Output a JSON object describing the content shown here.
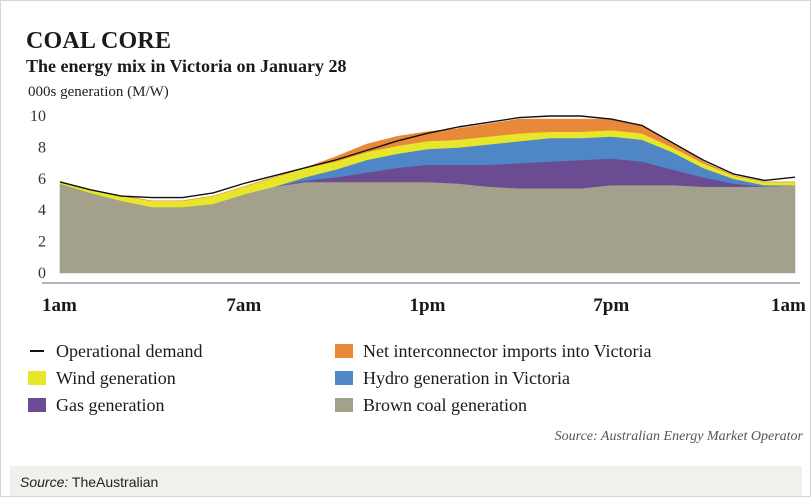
{
  "chart_data": {
    "type": "area",
    "stacked": true,
    "title": "COAL CORE",
    "subtitle": "The energy mix in Victoria on January 28",
    "ylabel": "000s generation (M/W)",
    "ylim": [
      0,
      10
    ],
    "yticks": [
      "10",
      "8",
      "6",
      "4",
      "2",
      "0"
    ],
    "xtick_labels": [
      "1am",
      "7am",
      "1pm",
      "7pm",
      "1am"
    ],
    "xtick_hours": [
      1,
      7,
      13,
      19,
      25
    ],
    "xlim": [
      1,
      25
    ],
    "grid": false,
    "x": [
      1,
      2,
      3,
      4,
      5,
      6,
      7,
      8,
      9,
      10,
      11,
      12,
      13,
      14,
      15,
      16,
      17,
      18,
      19,
      20,
      21,
      22,
      23,
      24,
      25
    ],
    "series": [
      {
        "name": "Brown coal generation",
        "color": "#a3a08b",
        "values": [
          5.7,
          5.1,
          4.6,
          4.2,
          4.2,
          4.4,
          5.0,
          5.5,
          5.8,
          5.8,
          5.8,
          5.8,
          5.8,
          5.7,
          5.5,
          5.4,
          5.4,
          5.4,
          5.6,
          5.6,
          5.6,
          5.5,
          5.5,
          5.5,
          5.6
        ]
      },
      {
        "name": "Gas generation",
        "color": "#6b4c93",
        "values": [
          0,
          0,
          0,
          0,
          0,
          0,
          0,
          0,
          0.1,
          0.3,
          0.6,
          0.9,
          1.1,
          1.2,
          1.4,
          1.6,
          1.7,
          1.8,
          1.7,
          1.5,
          1.0,
          0.6,
          0.2,
          0,
          0
        ]
      },
      {
        "name": "Hydro generation in Victoria",
        "color": "#4f86c6",
        "values": [
          0,
          0,
          0,
          0,
          0,
          0,
          0,
          0,
          0.2,
          0.5,
          0.8,
          0.9,
          1.0,
          1.1,
          1.3,
          1.4,
          1.5,
          1.4,
          1.4,
          1.4,
          1.1,
          0.6,
          0.3,
          0.1,
          0
        ]
      },
      {
        "name": "Wind generation",
        "color": "#e8e62a",
        "values": [
          0.1,
          0.2,
          0.3,
          0.4,
          0.4,
          0.5,
          0.5,
          0.6,
          0.6,
          0.5,
          0.5,
          0.5,
          0.5,
          0.5,
          0.5,
          0.5,
          0.4,
          0.4,
          0.4,
          0.4,
          0.3,
          0.3,
          0.2,
          0.2,
          0.2
        ]
      },
      {
        "name": "Net interconnector imports into Victoria",
        "color": "#e8893a",
        "values": [
          0,
          0,
          0,
          0,
          0,
          0,
          0,
          0,
          0,
          0.3,
          0.5,
          0.6,
          0.6,
          0.7,
          0.8,
          0.9,
          0.8,
          0.8,
          0.7,
          0.5,
          0.3,
          0.1,
          0,
          0,
          0
        ]
      }
    ],
    "line_series": {
      "name": "Operational demand",
      "color": "#111111",
      "values": [
        5.8,
        5.3,
        4.9,
        4.8,
        4.8,
        5.1,
        5.7,
        6.2,
        6.7,
        7.2,
        7.8,
        8.4,
        8.9,
        9.3,
        9.6,
        9.9,
        10.0,
        10.0,
        9.8,
        9.4,
        8.3,
        7.2,
        6.3,
        5.9,
        6.1
      ]
    },
    "legend": [
      {
        "name": "Operational demand",
        "kind": "line",
        "color": "#111111",
        "column": 0,
        "row": 0
      },
      {
        "name": "Wind generation",
        "kind": "box",
        "color": "#e8e62a",
        "column": 0,
        "row": 1
      },
      {
        "name": "Gas generation",
        "kind": "box",
        "color": "#6b4c93",
        "column": 0,
        "row": 2
      },
      {
        "name": "Net interconnector imports into Victoria",
        "kind": "box",
        "color": "#e8893a",
        "column": 1,
        "row": 0
      },
      {
        "name": "Hydro generation in Victoria",
        "kind": "box",
        "color": "#4f86c6",
        "column": 1,
        "row": 1
      },
      {
        "name": "Brown coal generation",
        "kind": "box",
        "color": "#a3a08b",
        "column": 1,
        "row": 2
      }
    ],
    "legend_position": "bottom",
    "source": "Source: Australian Energy Market Operator"
  },
  "caption": {
    "label": "Source:",
    "text": "TheAustralian"
  }
}
